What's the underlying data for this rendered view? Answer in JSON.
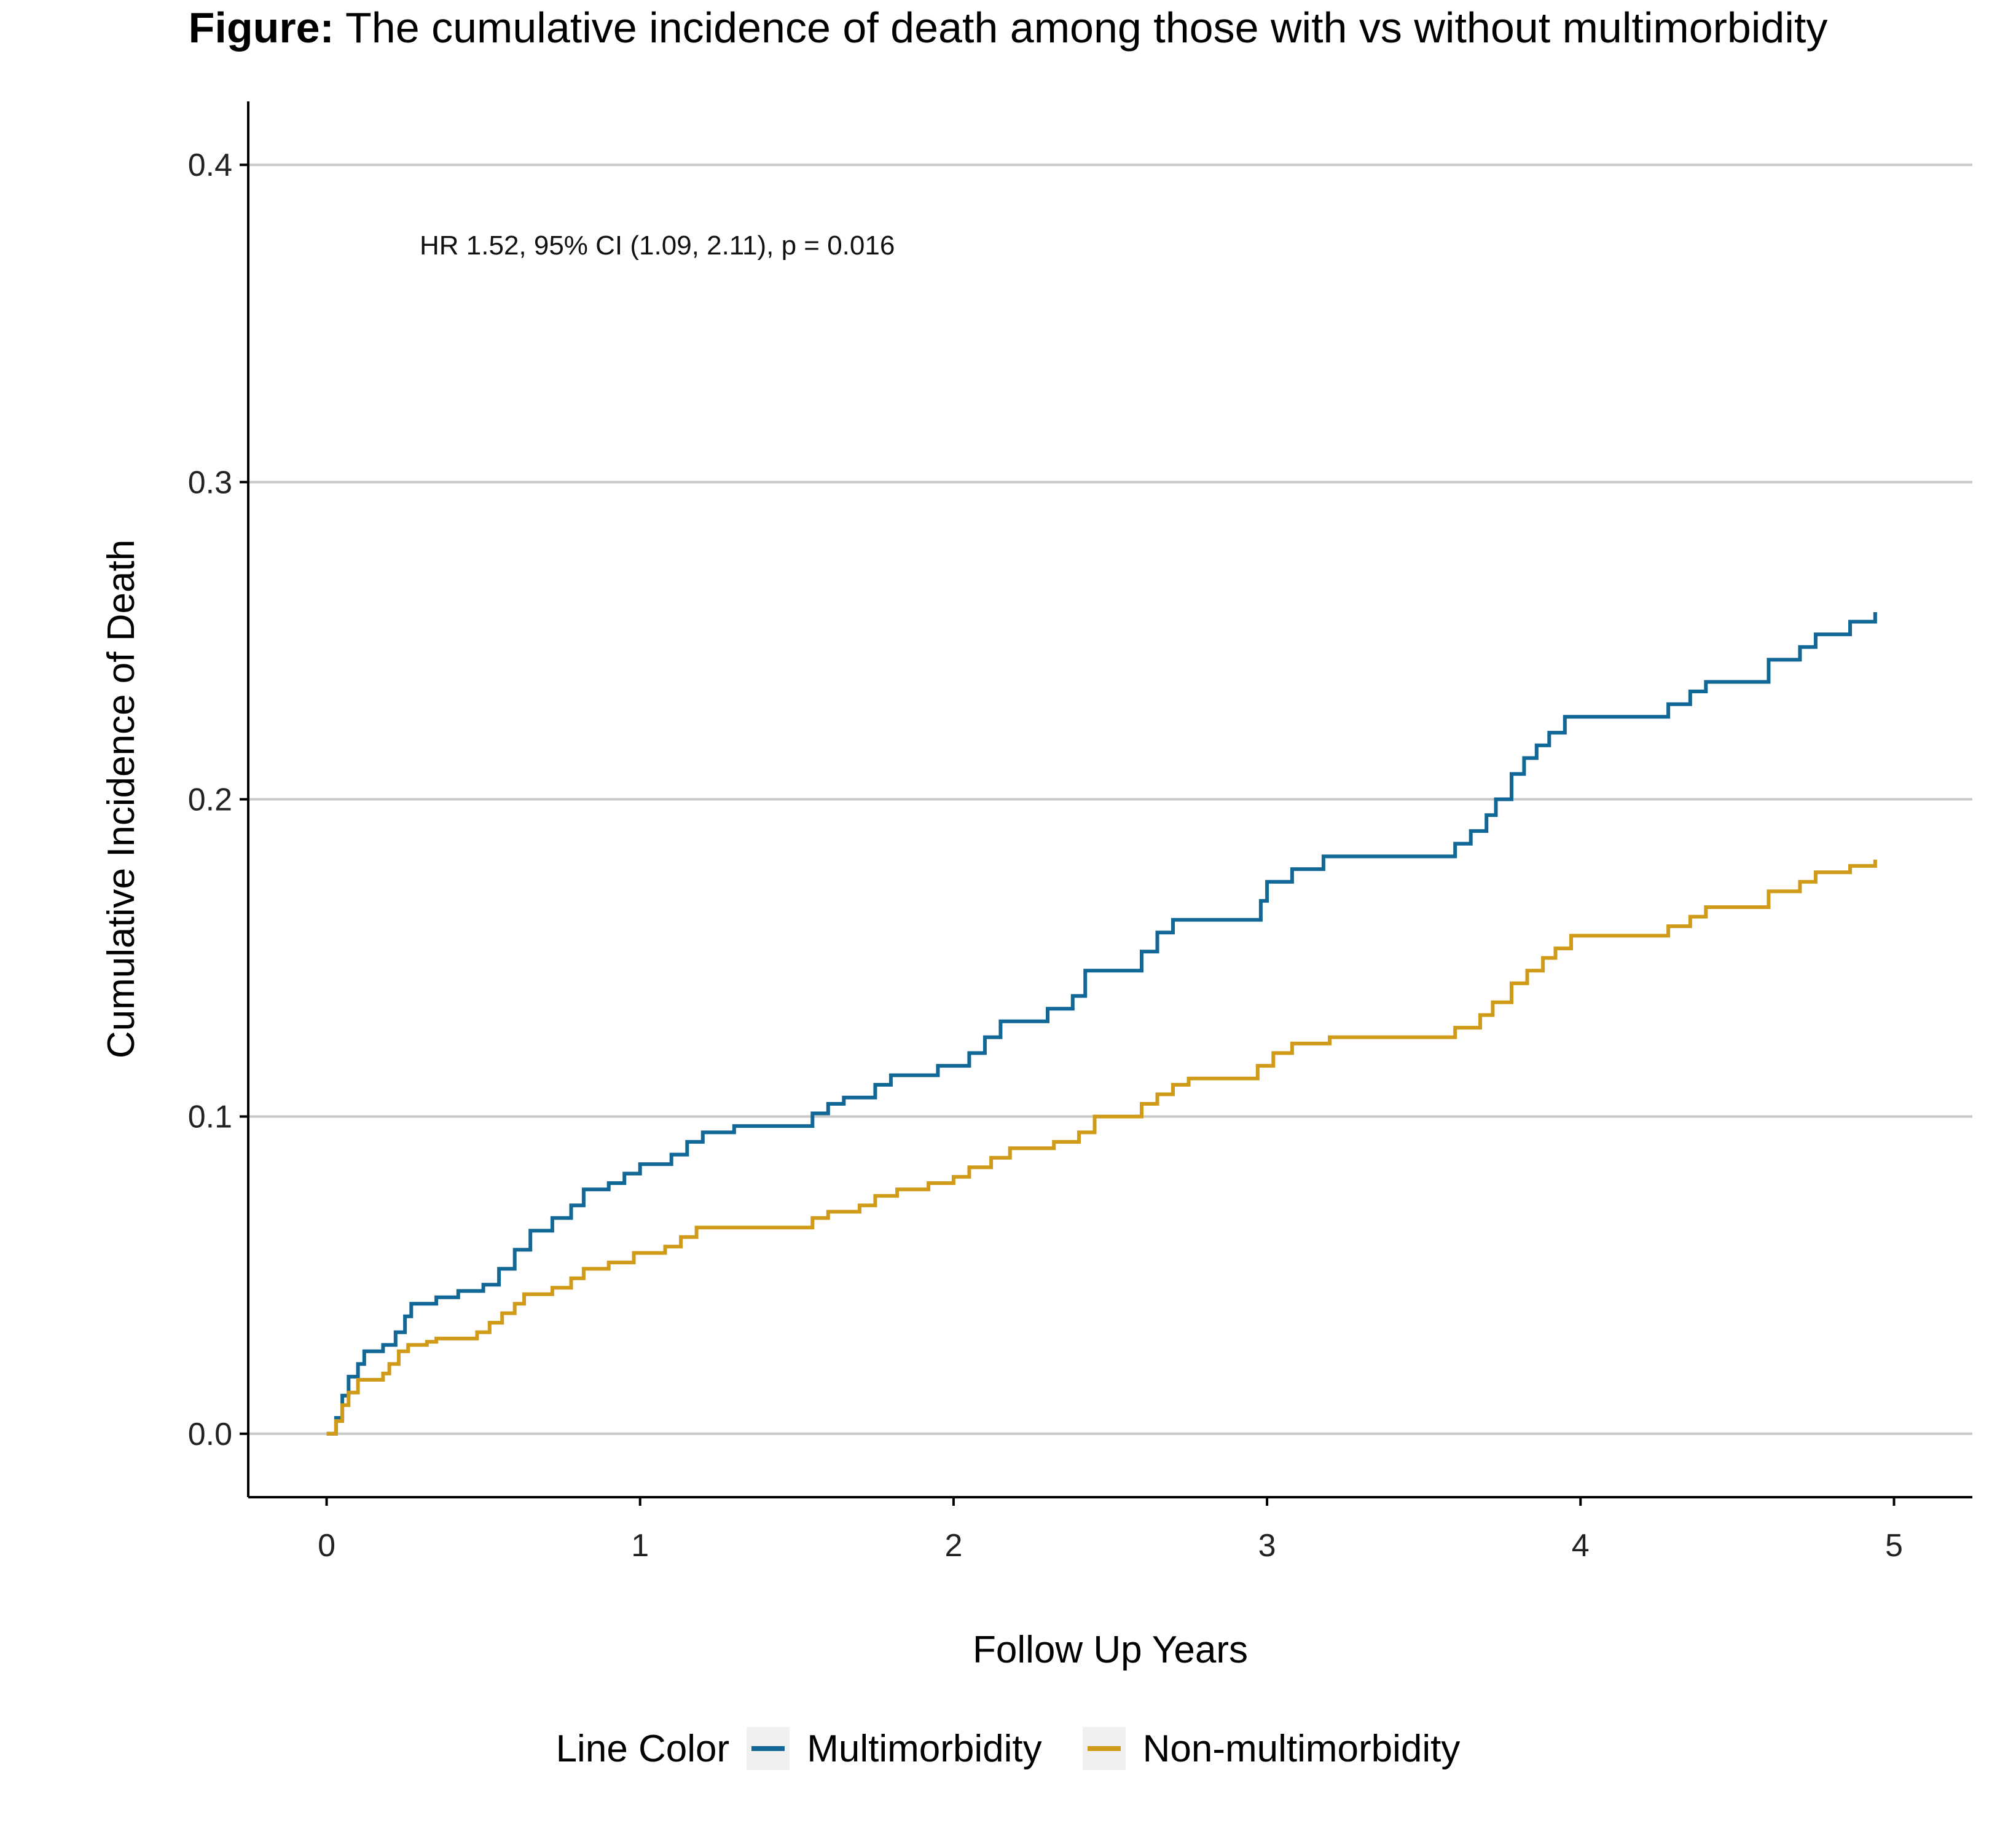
{
  "figure": {
    "title_prefix": "Figure:",
    "title_text": "The cumulative incidence of death among those with vs without multimorbidity"
  },
  "chart_data": {
    "type": "line",
    "title": "",
    "xlabel": "Follow Up Years",
    "ylabel": "Cumulative Incidence of Death",
    "xlim": [
      -0.25,
      5.25
    ],
    "ylim": [
      -0.02,
      0.42
    ],
    "x_ticks": [
      0,
      1,
      2,
      3,
      4,
      5
    ],
    "x_tick_labels": [
      "0",
      "1",
      "2",
      "3",
      "4",
      "5"
    ],
    "y_ticks": [
      0.0,
      0.1,
      0.2,
      0.3,
      0.4
    ],
    "y_tick_labels": [
      "0.0",
      "0.1",
      "0.2",
      "0.3",
      "0.4"
    ],
    "grid": "horizontal major",
    "step": true,
    "annotation": "HR 1.52, 95% CI (1.09, 2.11), p = 0.016",
    "legend": {
      "title": "Line Color",
      "position": "bottom"
    },
    "series": [
      {
        "name": "Multimorbidity",
        "color": "#116795",
        "points": [
          [
            0.0,
            0.0
          ],
          [
            0.03,
            0.005
          ],
          [
            0.05,
            0.012
          ],
          [
            0.07,
            0.018
          ],
          [
            0.1,
            0.022
          ],
          [
            0.12,
            0.026
          ],
          [
            0.18,
            0.028
          ],
          [
            0.22,
            0.032
          ],
          [
            0.25,
            0.037
          ],
          [
            0.27,
            0.041
          ],
          [
            0.35,
            0.043
          ],
          [
            0.42,
            0.045
          ],
          [
            0.5,
            0.047
          ],
          [
            0.55,
            0.052
          ],
          [
            0.6,
            0.058
          ],
          [
            0.65,
            0.064
          ],
          [
            0.72,
            0.068
          ],
          [
            0.78,
            0.072
          ],
          [
            0.82,
            0.077
          ],
          [
            0.9,
            0.079
          ],
          [
            0.95,
            0.082
          ],
          [
            1.0,
            0.085
          ],
          [
            1.1,
            0.088
          ],
          [
            1.15,
            0.092
          ],
          [
            1.2,
            0.095
          ],
          [
            1.3,
            0.097
          ],
          [
            1.55,
            0.101
          ],
          [
            1.6,
            0.104
          ],
          [
            1.65,
            0.106
          ],
          [
            1.75,
            0.11
          ],
          [
            1.8,
            0.113
          ],
          [
            1.95,
            0.116
          ],
          [
            2.05,
            0.12
          ],
          [
            2.1,
            0.125
          ],
          [
            2.15,
            0.13
          ],
          [
            2.3,
            0.134
          ],
          [
            2.38,
            0.138
          ],
          [
            2.42,
            0.146
          ],
          [
            2.6,
            0.152
          ],
          [
            2.65,
            0.158
          ],
          [
            2.7,
            0.162
          ],
          [
            2.98,
            0.168
          ],
          [
            3.0,
            0.174
          ],
          [
            3.08,
            0.178
          ],
          [
            3.18,
            0.182
          ],
          [
            3.6,
            0.186
          ],
          [
            3.65,
            0.19
          ],
          [
            3.7,
            0.195
          ],
          [
            3.73,
            0.2
          ],
          [
            3.78,
            0.208
          ],
          [
            3.82,
            0.213
          ],
          [
            3.86,
            0.217
          ],
          [
            3.9,
            0.221
          ],
          [
            3.95,
            0.226
          ],
          [
            4.28,
            0.23
          ],
          [
            4.35,
            0.234
          ],
          [
            4.4,
            0.237
          ],
          [
            4.6,
            0.244
          ],
          [
            4.7,
            0.248
          ],
          [
            4.75,
            0.252
          ],
          [
            4.86,
            0.256
          ],
          [
            4.94,
            0.259
          ]
        ]
      },
      {
        "name": "Non-multimorbidity",
        "color": "#cf9b18",
        "points": [
          [
            0.0,
            0.0
          ],
          [
            0.03,
            0.004
          ],
          [
            0.05,
            0.009
          ],
          [
            0.07,
            0.013
          ],
          [
            0.1,
            0.017
          ],
          [
            0.18,
            0.019
          ],
          [
            0.2,
            0.022
          ],
          [
            0.23,
            0.026
          ],
          [
            0.26,
            0.028
          ],
          [
            0.32,
            0.029
          ],
          [
            0.35,
            0.03
          ],
          [
            0.48,
            0.032
          ],
          [
            0.52,
            0.035
          ],
          [
            0.56,
            0.038
          ],
          [
            0.6,
            0.041
          ],
          [
            0.63,
            0.044
          ],
          [
            0.72,
            0.046
          ],
          [
            0.78,
            0.049
          ],
          [
            0.82,
            0.052
          ],
          [
            0.9,
            0.054
          ],
          [
            0.98,
            0.057
          ],
          [
            1.08,
            0.059
          ],
          [
            1.13,
            0.062
          ],
          [
            1.18,
            0.065
          ],
          [
            1.55,
            0.068
          ],
          [
            1.6,
            0.07
          ],
          [
            1.7,
            0.072
          ],
          [
            1.75,
            0.075
          ],
          [
            1.82,
            0.077
          ],
          [
            1.92,
            0.079
          ],
          [
            2.0,
            0.081
          ],
          [
            2.05,
            0.084
          ],
          [
            2.12,
            0.087
          ],
          [
            2.18,
            0.09
          ],
          [
            2.32,
            0.092
          ],
          [
            2.4,
            0.095
          ],
          [
            2.45,
            0.1
          ],
          [
            2.6,
            0.104
          ],
          [
            2.65,
            0.107
          ],
          [
            2.7,
            0.11
          ],
          [
            2.75,
            0.112
          ],
          [
            2.97,
            0.116
          ],
          [
            3.02,
            0.12
          ],
          [
            3.08,
            0.123
          ],
          [
            3.2,
            0.125
          ],
          [
            3.6,
            0.128
          ],
          [
            3.68,
            0.132
          ],
          [
            3.72,
            0.136
          ],
          [
            3.78,
            0.142
          ],
          [
            3.83,
            0.146
          ],
          [
            3.88,
            0.15
          ],
          [
            3.92,
            0.153
          ],
          [
            3.97,
            0.157
          ],
          [
            4.28,
            0.16
          ],
          [
            4.35,
            0.163
          ],
          [
            4.4,
            0.166
          ],
          [
            4.6,
            0.171
          ],
          [
            4.7,
            0.174
          ],
          [
            4.75,
            0.177
          ],
          [
            4.86,
            0.179
          ],
          [
            4.94,
            0.181
          ]
        ]
      }
    ]
  }
}
